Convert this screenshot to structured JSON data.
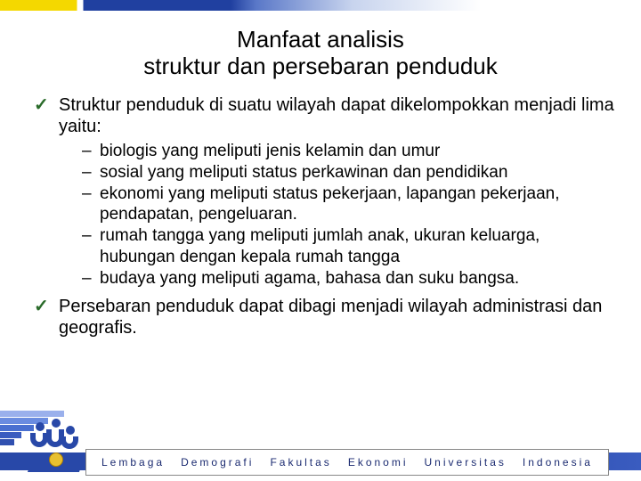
{
  "title_line1": "Manfaat analisis",
  "title_line2": "struktur dan persebaran penduduk",
  "bullets": [
    {
      "text": "Struktur penduduk di suatu wilayah dapat dikelompokkan menjadi lima yaitu:",
      "subs": [
        "biologis yang meliputi jenis kelamin dan umur",
        "sosial yang meliputi status perkawinan dan pendidikan",
        "ekonomi yang meliputi status pekerjaan, lapangan pekerjaan, pendapatan, pengeluaran.",
        "rumah tangga yang meliputi jumlah anak, ukuran keluarga, hubungan dengan kepala rumah tangga",
        "budaya yang meliputi agama, bahasa dan suku bangsa."
      ]
    },
    {
      "text": "Persebaran penduduk dapat dibagi menjadi wilayah administrasi dan geografis.",
      "subs": []
    }
  ],
  "footer": {
    "w1": "Lembaga",
    "w2": "Demografi",
    "w3": "Fakultas",
    "w4": "Ekonomi",
    "w5": "Universitas",
    "w6": "Indonesia"
  },
  "colors": {
    "accent_blue": "#2848a8",
    "accent_yellow": "#f4d800",
    "check_green": "#2a6b2a"
  }
}
